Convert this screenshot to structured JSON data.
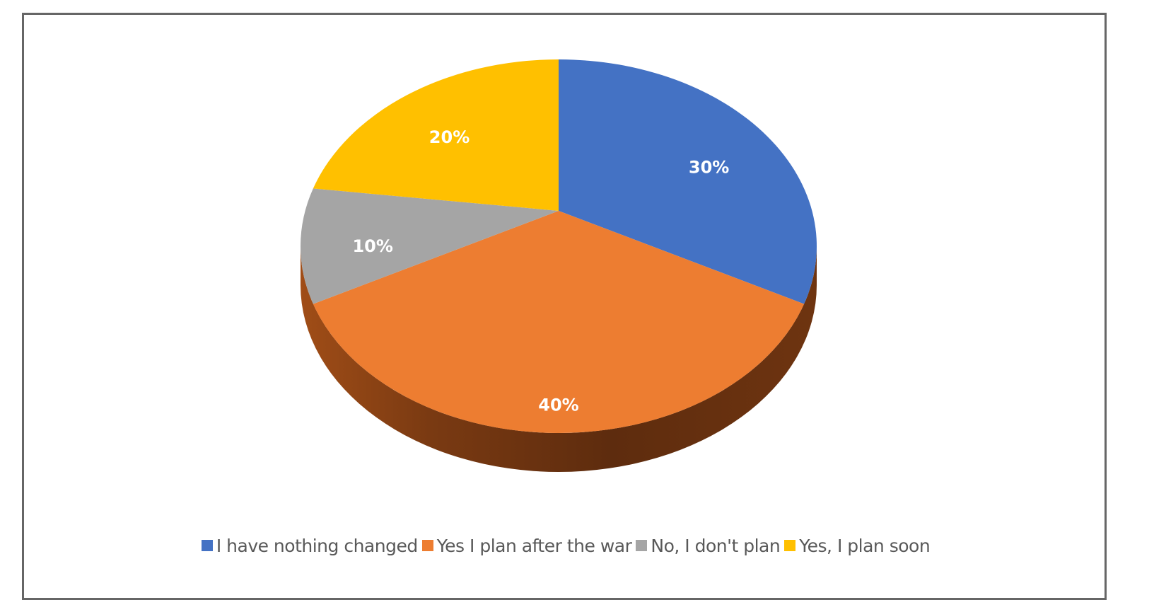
{
  "chart_data": {
    "type": "pie",
    "style": "3d",
    "categories": [
      "I have nothing changed",
      "Yes I plan after the war",
      "No, I don't plan",
      "Yes, I plan soon"
    ],
    "values": [
      30,
      40,
      10,
      20
    ],
    "labels": [
      "30%",
      "40%",
      "10%",
      "20%"
    ],
    "colors": [
      "#4472C4",
      "#ED7D31",
      "#A5A5A5",
      "#FFC000"
    ],
    "legend_position": "bottom"
  }
}
